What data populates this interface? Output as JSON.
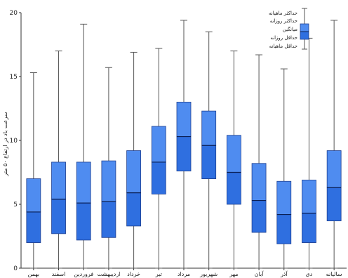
{
  "chart_data": {
    "type": "box",
    "ylabel": "سرعت باد در ارتفاع ۵۰ متر",
    "ylim": [
      0,
      20
    ],
    "yticks": [
      "0",
      "5",
      "10",
      "15",
      "20"
    ],
    "grid": false,
    "legend_position": "top-right",
    "categories": [
      "بهمن",
      "اسفند",
      "فروردین",
      "اردیبهشت",
      "خرداد",
      "تیر",
      "مرداد",
      "شهریور",
      "مهر",
      "آبان",
      "آذر",
      "دی",
      "سالیانه"
    ],
    "series": [
      {
        "values": [
          {
            "min": 0.0,
            "q1": 2.0,
            "median": 4.4,
            "q3": 7.0,
            "max": 15.3
          },
          {
            "min": 0.0,
            "q1": 2.7,
            "median": 5.4,
            "q3": 8.3,
            "max": 17.0
          },
          {
            "min": 0.0,
            "q1": 2.2,
            "median": 5.1,
            "q3": 8.3,
            "max": 19.1
          },
          {
            "min": 0.0,
            "q1": 2.4,
            "median": 5.2,
            "q3": 8.4,
            "max": 15.7
          },
          {
            "min": 0.0,
            "q1": 3.3,
            "median": 5.9,
            "q3": 9.2,
            "max": 16.9
          },
          {
            "min": 0.0,
            "q1": 5.8,
            "median": 8.3,
            "q3": 11.1,
            "max": 17.2
          },
          {
            "min": 0.0,
            "q1": 7.6,
            "median": 10.3,
            "q3": 13.0,
            "max": 19.4
          },
          {
            "min": 0.0,
            "q1": 7.0,
            "median": 9.6,
            "q3": 12.3,
            "max": 18.5
          },
          {
            "min": 0.0,
            "q1": 5.0,
            "median": 7.5,
            "q3": 10.4,
            "max": 17.0
          },
          {
            "min": 0.0,
            "q1": 2.8,
            "median": 5.3,
            "q3": 8.2,
            "max": 16.7
          },
          {
            "min": 0.0,
            "q1": 1.9,
            "median": 4.2,
            "q3": 6.8,
            "max": 15.6
          },
          {
            "min": 0.0,
            "q1": 2.0,
            "median": 4.3,
            "q3": 6.9,
            "max": 18.0
          },
          {
            "min": 0.0,
            "q1": 3.7,
            "median": 6.3,
            "q3": 9.2,
            "max": 19.4
          }
        ]
      }
    ],
    "legend": [
      "حداکثر ماهیانه",
      "حداکثر روزانه",
      "میانگین",
      "حداقل روزانه",
      "حداقل ماهیانه"
    ]
  },
  "colors": {
    "box_fill": "#2f6fe0",
    "box_fill_light": "#4f8cf0",
    "box_edge": "#1f3f8f",
    "whisker": "#555555",
    "axis": "#333333"
  }
}
